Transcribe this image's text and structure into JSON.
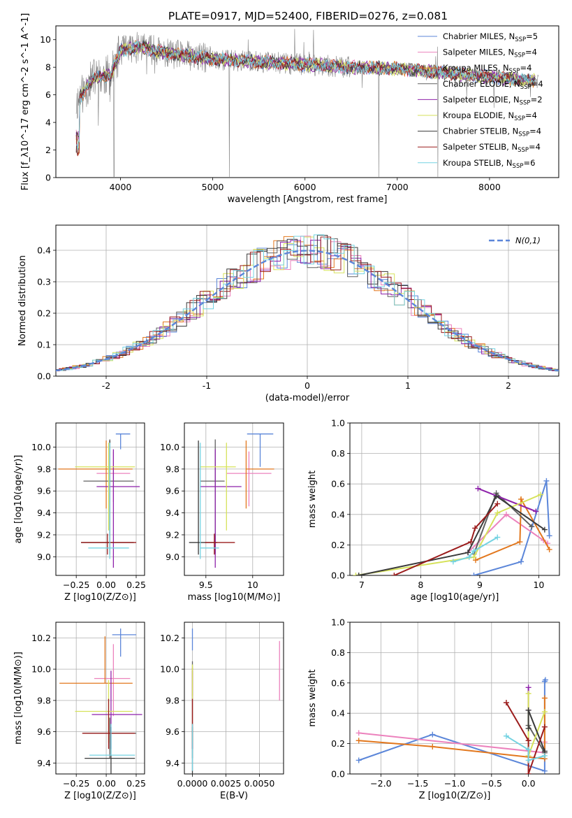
{
  "title": "PLATE=0917, MJD=52400, FIBERID=0276, z=0.081",
  "colors": {
    "chabrier_miles": "#5b86d9",
    "salpeter_miles": "#ec82bd",
    "kroupa_miles": "#e2771d",
    "chabrier_elodie": "#606060",
    "salpeter_elodie": "#8e22aa",
    "kroupa_elodie": "#d6e25a",
    "chabrier_stelib": "#3a3a3a",
    "salpeter_stelib": "#9b1c1c",
    "kroupa_stelib": "#74d3e2",
    "gaussian": "#5b86d9",
    "spectrum_obs": "#808080",
    "grid": "#b0b0b0"
  },
  "legend_entries": [
    "Chabrier MILES, N_SSP=5",
    "Salpeter MILES, N_SSP=4",
    "Kroupa MILES, N_SSP=4",
    "Chabrier ELODIE, N_SSP=4",
    "Salpeter ELODIE, N_SSP=2",
    "Kroupa ELODIE, N_SSP=4",
    "Chabrier STELIB, N_SSP=4",
    "Salpeter STELIB, N_SSP=4",
    "Kroupa STELIB, N_SSP=6"
  ],
  "gaussian_label": "N(0,1)",
  "chart_data": [
    {
      "type": "line",
      "name": "spectrum",
      "xlabel": "wavelength [Angstrom, rest frame]",
      "ylabel": "Flux [f_λ10^-17 erg cm^-2 s^-1 A^-1]",
      "xlim": [
        3300,
        8750
      ],
      "ylim": [
        0,
        11
      ],
      "xticks": [
        4000,
        5000,
        6000,
        7000,
        8000
      ],
      "yticks": [
        0,
        2,
        4,
        6,
        8,
        10
      ],
      "model_continuum": {
        "x": [
          3530,
          3600,
          3700,
          3800,
          3900,
          4000,
          4200,
          4500,
          5000,
          5500,
          6000,
          6500,
          7000,
          7300,
          7500,
          8000,
          8500
        ],
        "y": [
          5.5,
          6.2,
          7.2,
          7.3,
          7.5,
          9.2,
          9.5,
          9.0,
          8.6,
          8.4,
          8.2,
          8.0,
          7.9,
          7.7,
          7.6,
          7.3,
          7.0
        ]
      },
      "grid": false
    },
    {
      "type": "line",
      "name": "residual-distribution",
      "xlabel": "(data-model)/error",
      "ylabel": "Normed distribution",
      "xlim": [
        -2.5,
        2.5
      ],
      "ylim": [
        0,
        0.48
      ],
      "xticks": [
        -2,
        -1,
        0,
        1,
        2
      ],
      "yticks": [
        0.0,
        0.1,
        0.2,
        0.3,
        0.4
      ],
      "series": [
        {
          "name": "N(0,1)",
          "mean": 0,
          "sigma": 1
        }
      ],
      "grid": true
    },
    {
      "type": "scatter",
      "name": "age-vs-Z",
      "xlabel": "Z [log10(Z/Z⊙)]",
      "ylabel": "age [log10(age/yr)]",
      "xlim": [
        -0.42,
        0.32
      ],
      "ylim": [
        8.83,
        10.22
      ],
      "xticks": [
        -0.25,
        0.0,
        0.25
      ],
      "xticklabels": [
        "−0.25",
        "0.00",
        "0.25"
      ],
      "yticks": [
        9.0,
        9.2,
        9.4,
        9.6,
        9.8,
        10.0
      ],
      "points": [
        {
          "model": "chabrier_miles",
          "x": 0.12,
          "y": 10.12,
          "xerr": [
            0.04,
            0.08
          ],
          "yerr": [
            0.14,
            0.0
          ]
        },
        {
          "model": "salpeter_miles",
          "x": 0.06,
          "y": 9.76,
          "xerr": [
            0.14,
            0.14
          ],
          "yerr": [
            0.26,
            0.2
          ]
        },
        {
          "model": "kroupa_miles",
          "x": 0.0,
          "y": 9.8,
          "xerr": [
            0.4,
            0.22
          ],
          "yerr": [
            0.36,
            0.26
          ]
        },
        {
          "model": "chabrier_elodie",
          "x": 0.03,
          "y": 9.69,
          "xerr": [
            0.22,
            0.2
          ],
          "yerr": [
            0.66,
            0.38
          ]
        },
        {
          "model": "salpeter_elodie",
          "x": 0.06,
          "y": 9.64,
          "xerr": [
            0.14,
            0.22
          ],
          "yerr": [
            0.74,
            0.34
          ]
        },
        {
          "model": "kroupa_elodie",
          "x": 0.02,
          "y": 9.82,
          "xerr": [
            0.28,
            0.22
          ],
          "yerr": [
            0.58,
            0.22
          ]
        },
        {
          "model": "chabrier_stelib",
          "x": 0.03,
          "y": 9.13,
          "xerr": [
            0.24,
            0.2
          ],
          "yerr": [
            0.11,
            0.93
          ]
        },
        {
          "model": "salpeter_stelib",
          "x": 0.01,
          "y": 9.13,
          "xerr": [
            0.22,
            0.24
          ],
          "yerr": [
            0.11,
            0.08
          ]
        },
        {
          "model": "kroupa_stelib",
          "x": 0.03,
          "y": 9.08,
          "xerr": [
            0.18,
            0.16
          ],
          "yerr": [
            0.1,
            0.96
          ]
        }
      ],
      "grid": true
    },
    {
      "type": "scatter",
      "name": "age-vs-mass",
      "xlabel": "mass [log10(M/M⊙)]",
      "ylabel": "",
      "xlim": [
        9.27,
        10.33
      ],
      "ylim": [
        8.83,
        10.22
      ],
      "xticks": [
        9.5,
        10.0
      ],
      "yticks": [
        9.0,
        9.2,
        9.4,
        9.6,
        9.8,
        10.0
      ],
      "points": [
        {
          "model": "chabrier_miles",
          "x": 10.08,
          "y": 10.12,
          "xerr": [
            0.14,
            0.14
          ],
          "yerr": [
            0.3,
            0.0
          ]
        },
        {
          "model": "salpeter_miles",
          "x": 9.96,
          "y": 9.76,
          "xerr": [
            0.24,
            0.24
          ],
          "yerr": [
            0.3,
            0.2
          ]
        },
        {
          "model": "kroupa_miles",
          "x": 9.93,
          "y": 9.8,
          "xerr": [
            0.0,
            0.3
          ],
          "yerr": [
            0.36,
            0.26
          ]
        },
        {
          "model": "chabrier_elodie",
          "x": 9.6,
          "y": 9.69,
          "xerr": [
            0.16,
            0.1
          ],
          "yerr": [
            0.66,
            0.38
          ]
        },
        {
          "model": "salpeter_elodie",
          "x": 9.6,
          "y": 9.64,
          "xerr": [
            0.16,
            0.28
          ],
          "yerr": [
            0.74,
            0.34
          ]
        },
        {
          "model": "kroupa_elodie",
          "x": 9.72,
          "y": 9.82,
          "xerr": [
            0.28,
            0.1
          ],
          "yerr": [
            0.58,
            0.22
          ]
        },
        {
          "model": "chabrier_stelib",
          "x": 9.42,
          "y": 9.13,
          "xerr": [
            0.1,
            0.2
          ],
          "yerr": [
            0.11,
            0.93
          ]
        },
        {
          "model": "salpeter_stelib",
          "x": 9.59,
          "y": 9.13,
          "xerr": [
            0.1,
            0.22
          ],
          "yerr": [
            0.11,
            0.08
          ]
        },
        {
          "model": "kroupa_stelib",
          "x": 9.44,
          "y": 9.08,
          "xerr": [
            0.0,
            0.2
          ],
          "yerr": [
            0.1,
            0.96
          ]
        }
      ],
      "grid": true
    },
    {
      "type": "line",
      "name": "mass-weight-vs-age",
      "xlabel": "age [log10(age/yr)]",
      "ylabel": "mass weight",
      "xlim": [
        6.8,
        10.35
      ],
      "ylim": [
        0.0,
        1.0
      ],
      "xticks": [
        7,
        8,
        9,
        10
      ],
      "yticks": [
        0.0,
        0.2,
        0.4,
        0.6,
        0.8,
        1.0
      ],
      "series": [
        {
          "model": "chabrier_miles",
          "x": [
            8.9,
            9.7,
            10.13,
            10.18
          ],
          "y": [
            0.0,
            0.09,
            0.62,
            0.26
          ]
        },
        {
          "model": "salpeter_miles",
          "x": [
            8.8,
            9.45,
            10.08,
            10.15
          ],
          "y": [
            0.15,
            0.4,
            0.23,
            0.21
          ]
        },
        {
          "model": "kroupa_miles",
          "x": [
            8.93,
            9.68,
            9.7,
            10.18
          ],
          "y": [
            0.1,
            0.22,
            0.5,
            0.17
          ]
        },
        {
          "model": "chabrier_elodie",
          "x": [
            8.9,
            9.28,
            9.88
          ],
          "y": [
            0.14,
            0.54,
            0.32
          ]
        },
        {
          "model": "salpeter_elodie",
          "x": [
            8.97,
            9.95
          ],
          "y": [
            0.57,
            0.42
          ]
        },
        {
          "model": "kroupa_elodie",
          "x": [
            6.9,
            8.9,
            9.3,
            10.03
          ],
          "y": [
            0.0,
            0.12,
            0.41,
            0.53
          ]
        },
        {
          "model": "chabrier_stelib",
          "x": [
            6.95,
            8.8,
            9.28,
            10.1
          ],
          "y": [
            0.0,
            0.15,
            0.52,
            0.3
          ]
        },
        {
          "model": "salpeter_stelib",
          "x": [
            7.55,
            8.85,
            8.92,
            9.3
          ],
          "y": [
            0.0,
            0.22,
            0.31,
            0.47
          ]
        },
        {
          "model": "kroupa_stelib",
          "x": [
            8.55,
            8.82,
            8.9,
            9.3
          ],
          "y": [
            0.09,
            0.12,
            0.16,
            0.25
          ]
        }
      ],
      "grid": true
    },
    {
      "type": "scatter",
      "name": "mass-vs-Z",
      "xlabel": "Z [log10(Z/Z⊙)]",
      "ylabel": "mass [log10(M/M⊙)]",
      "xlim": [
        -0.42,
        0.32
      ],
      "ylim": [
        9.33,
        10.3
      ],
      "xticks": [
        -0.25,
        0.0,
        0.25
      ],
      "xticklabels": [
        "−0.25",
        "0.00",
        "0.25"
      ],
      "yticks": [
        9.4,
        9.6,
        9.8,
        10.0,
        10.2
      ],
      "points": [
        {
          "model": "chabrier_miles",
          "x": 0.12,
          "y": 10.22,
          "xerr": [
            0.07,
            0.13
          ],
          "yerr": [
            0.14,
            0.04
          ]
        },
        {
          "model": "salpeter_miles",
          "x": 0.06,
          "y": 9.94,
          "xerr": [
            0.16,
            0.14
          ],
          "yerr": [
            0.24,
            0.22
          ]
        },
        {
          "model": "kroupa_miles",
          "x": -0.01,
          "y": 9.91,
          "xerr": [
            0.38,
            0.23
          ],
          "yerr": [
            0.0,
            0.3
          ]
        },
        {
          "model": "chabrier_elodie",
          "x": 0.03,
          "y": 9.59,
          "xerr": [
            0.22,
            0.22
          ],
          "yerr": [
            0.16,
            0.1
          ]
        },
        {
          "model": "salpeter_elodie",
          "x": 0.04,
          "y": 9.71,
          "xerr": [
            0.16,
            0.26
          ],
          "yerr": [
            0.22,
            0.28
          ]
        },
        {
          "model": "kroupa_elodie",
          "x": 0.02,
          "y": 9.73,
          "xerr": [
            0.28,
            0.2
          ],
          "yerr": [
            0.2,
            0.2
          ]
        },
        {
          "model": "chabrier_stelib",
          "x": 0.04,
          "y": 9.43,
          "xerr": [
            0.22,
            0.2
          ],
          "yerr": [
            0.1,
            0.2
          ]
        },
        {
          "model": "salpeter_stelib",
          "x": 0.02,
          "y": 9.59,
          "xerr": [
            0.22,
            0.22
          ],
          "yerr": [
            0.1,
            0.22
          ]
        },
        {
          "model": "kroupa_stelib",
          "x": 0.04,
          "y": 9.45,
          "xerr": [
            0.18,
            0.2
          ],
          "yerr": [
            0.0,
            0.2
          ]
        }
      ],
      "grid": true
    },
    {
      "type": "scatter",
      "name": "mass-vs-EBV",
      "xlabel": "E(B-V)",
      "ylabel": "",
      "xlim": [
        -0.0006,
        0.0068
      ],
      "ylim": [
        9.33,
        10.3
      ],
      "xticks": [
        0.0,
        0.0025,
        0.005
      ],
      "xticklabels": [
        "0.0000",
        "0.0025",
        "0.0050"
      ],
      "yticks": [
        9.4,
        9.6,
        9.8,
        10.0,
        10.2
      ],
      "points": [
        {
          "model": "chabrier_miles",
          "x": 0.0,
          "y": 10.22,
          "yerr": [
            0.1,
            0.04
          ]
        },
        {
          "model": "salpeter_miles",
          "x": 0.0065,
          "y": 10.0,
          "yerr": [
            0.2,
            0.18
          ]
        },
        {
          "model": "kroupa_miles",
          "x": 0.0,
          "y": 9.91,
          "yerr": [
            0.08,
            0.1
          ]
        },
        {
          "model": "chabrier_elodie",
          "x": 0.0,
          "y": 9.59,
          "yerr": [
            0.16,
            0.46
          ]
        },
        {
          "model": "salpeter_elodie",
          "x": 0.0,
          "y": 9.71,
          "yerr": [
            0.22,
            0.28
          ]
        },
        {
          "model": "kroupa_elodie",
          "x": 0.0,
          "y": 9.73,
          "yerr": [
            0.2,
            0.3
          ]
        },
        {
          "model": "chabrier_stelib",
          "x": 0.0,
          "y": 9.43,
          "yerr": [
            0.1,
            0.2
          ]
        },
        {
          "model": "salpeter_stelib",
          "x": 0.0,
          "y": 9.59,
          "yerr": [
            0.1,
            0.22
          ]
        },
        {
          "model": "kroupa_stelib",
          "x": 0.0,
          "y": 9.45,
          "yerr": [
            0.1,
            0.2
          ]
        }
      ],
      "grid": true
    },
    {
      "type": "line",
      "name": "mass-weight-vs-Z",
      "xlabel": "Z [log10(Z/Z⊙)]",
      "ylabel": "mass weight",
      "xlim": [
        -2.42,
        0.42
      ],
      "ylim": [
        0.0,
        1.0
      ],
      "xticks": [
        -2.0,
        -1.5,
        -1.0,
        -0.5,
        0.0
      ],
      "xticklabels": [
        "−2.0",
        "−1.5",
        "−1.0",
        "−0.5",
        "0.0"
      ],
      "yticks": [
        0.0,
        0.2,
        0.4,
        0.6,
        0.8,
        1.0
      ],
      "series": [
        {
          "model": "chabrier_miles",
          "x": [
            -2.3,
            -1.3,
            0.22,
            0.22,
            0.23
          ],
          "y": [
            0.09,
            0.26,
            0.02,
            0.61,
            0.62
          ]
        },
        {
          "model": "salpeter_miles",
          "x": [
            -2.3,
            0.22,
            0.22
          ],
          "y": [
            0.27,
            0.14,
            0.21
          ]
        },
        {
          "model": "kroupa_miles",
          "x": [
            -2.3,
            -1.3,
            0.22,
            0.22
          ],
          "y": [
            0.22,
            0.18,
            0.1,
            0.5
          ]
        },
        {
          "model": "chabrier_elodie",
          "x": [
            0.0,
            0.22
          ],
          "y": [
            0.32,
            0.14
          ]
        },
        {
          "model": "salpeter_elodie",
          "x": [
            0.0,
            0.0
          ],
          "y": [
            0.42,
            0.57
          ]
        },
        {
          "model": "kroupa_elodie",
          "x": [
            0.0,
            0.0,
            0.22
          ],
          "y": [
            0.53,
            0.12,
            0.41
          ]
        },
        {
          "model": "chabrier_stelib",
          "x": [
            0.0,
            0.0,
            0.22
          ],
          "y": [
            0.3,
            0.42,
            0.15
          ]
        },
        {
          "model": "salpeter_stelib",
          "x": [
            -0.3,
            0.0,
            0.0,
            0.22
          ],
          "y": [
            0.47,
            0.22,
            0.0,
            0.31
          ]
        },
        {
          "model": "kroupa_stelib",
          "x": [
            -0.3,
            0.0,
            0.0,
            0.22
          ],
          "y": [
            0.25,
            0.16,
            0.09,
            0.12
          ]
        }
      ],
      "grid": true
    }
  ]
}
